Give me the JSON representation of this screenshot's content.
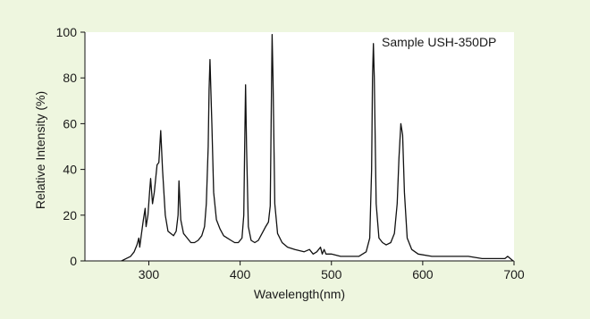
{
  "chart_data": {
    "type": "line",
    "title": "",
    "annotation": "Sample USH-350DP",
    "xlabel": "Wavelength(nm)",
    "ylabel": "Relative Intensity (%)",
    "xlim": [
      230,
      700
    ],
    "ylim": [
      0,
      100
    ],
    "x_ticks": [
      300,
      400,
      500,
      600,
      700
    ],
    "y_ticks": [
      0,
      20,
      40,
      60,
      80,
      100
    ],
    "grid": false,
    "background": "#eef6df",
    "plot_background": "#ffffff",
    "line_color": "#111111",
    "series": [
      {
        "name": "",
        "points": [
          [
            270,
            0
          ],
          [
            275,
            1
          ],
          [
            280,
            2
          ],
          [
            284,
            4
          ],
          [
            287,
            7
          ],
          [
            289,
            10
          ],
          [
            290,
            6
          ],
          [
            292,
            12
          ],
          [
            294,
            18
          ],
          [
            296,
            23
          ],
          [
            297,
            15
          ],
          [
            299,
            20
          ],
          [
            301,
            31
          ],
          [
            302,
            36
          ],
          [
            304,
            25
          ],
          [
            306,
            30
          ],
          [
            309,
            42
          ],
          [
            311,
            43
          ],
          [
            313,
            57
          ],
          [
            315,
            40
          ],
          [
            318,
            20
          ],
          [
            321,
            13
          ],
          [
            324,
            12
          ],
          [
            327,
            11
          ],
          [
            330,
            13
          ],
          [
            332,
            20
          ],
          [
            333,
            35
          ],
          [
            335,
            18
          ],
          [
            338,
            12
          ],
          [
            342,
            10
          ],
          [
            346,
            8
          ],
          [
            350,
            8
          ],
          [
            354,
            9
          ],
          [
            358,
            11
          ],
          [
            361,
            15
          ],
          [
            363,
            25
          ],
          [
            365,
            50
          ],
          [
            366,
            75
          ],
          [
            367,
            88
          ],
          [
            369,
            60
          ],
          [
            371,
            30
          ],
          [
            374,
            18
          ],
          [
            378,
            14
          ],
          [
            382,
            11
          ],
          [
            386,
            10
          ],
          [
            390,
            9
          ],
          [
            394,
            8
          ],
          [
            398,
            8
          ],
          [
            402,
            10
          ],
          [
            404,
            20
          ],
          [
            405,
            50
          ],
          [
            406,
            77
          ],
          [
            407,
            50
          ],
          [
            409,
            15
          ],
          [
            412,
            9
          ],
          [
            416,
            8
          ],
          [
            420,
            9
          ],
          [
            424,
            12
          ],
          [
            428,
            15
          ],
          [
            431,
            17
          ],
          [
            433,
            24
          ],
          [
            434,
            60
          ],
          [
            435,
            99
          ],
          [
            436,
            80
          ],
          [
            438,
            25
          ],
          [
            441,
            12
          ],
          [
            446,
            8
          ],
          [
            452,
            6
          ],
          [
            460,
            5
          ],
          [
            470,
            4
          ],
          [
            476,
            5
          ],
          [
            480,
            3
          ],
          [
            484,
            4
          ],
          [
            488,
            6
          ],
          [
            490,
            3
          ],
          [
            492,
            5
          ],
          [
            494,
            3
          ],
          [
            500,
            3
          ],
          [
            510,
            2
          ],
          [
            520,
            2
          ],
          [
            530,
            2
          ],
          [
            538,
            4
          ],
          [
            542,
            10
          ],
          [
            544,
            40
          ],
          [
            545,
            80
          ],
          [
            546,
            95
          ],
          [
            547,
            80
          ],
          [
            549,
            25
          ],
          [
            552,
            10
          ],
          [
            556,
            8
          ],
          [
            560,
            7
          ],
          [
            565,
            8
          ],
          [
            569,
            12
          ],
          [
            572,
            25
          ],
          [
            574,
            45
          ],
          [
            576,
            60
          ],
          [
            578,
            55
          ],
          [
            580,
            30
          ],
          [
            583,
            10
          ],
          [
            588,
            5
          ],
          [
            595,
            3
          ],
          [
            610,
            2
          ],
          [
            630,
            2
          ],
          [
            650,
            2
          ],
          [
            665,
            1
          ],
          [
            680,
            1
          ],
          [
            690,
            1
          ],
          [
            693,
            2
          ],
          [
            696,
            1
          ],
          [
            699,
            0
          ]
        ]
      }
    ]
  }
}
